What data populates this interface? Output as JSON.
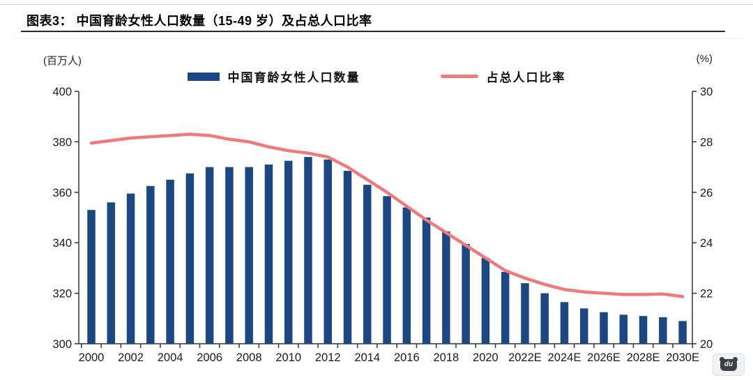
{
  "header": {
    "title": "图表3： 中国育龄女性人口数量（15-49 岁）及占总人口比率"
  },
  "legend": {
    "bar_label": "中国育龄女性人口数量",
    "line_label": "占总人口比率"
  },
  "watermark": {
    "label": "du"
  },
  "chart_data": {
    "type": "combo_bar_line",
    "title": "中国育龄女性人口数量（15-49 岁）及占总人口比率",
    "categories": [
      "2000",
      "2001",
      "2002",
      "2003",
      "2004",
      "2005",
      "2006",
      "2007",
      "2008",
      "2009",
      "2010",
      "2011",
      "2012",
      "2013",
      "2014",
      "2015",
      "2016",
      "2017",
      "2018",
      "2019",
      "2020",
      "2021",
      "2022E",
      "2023E",
      "2024E",
      "2025E",
      "2026E",
      "2027E",
      "2028E",
      "2029E",
      "2030E"
    ],
    "x_tick_labels": [
      "2000",
      "2002",
      "2004",
      "2006",
      "2008",
      "2010",
      "2012",
      "2014",
      "2016",
      "2018",
      "2020",
      "2022E",
      "2024E",
      "2026E",
      "2028E",
      "2030E"
    ],
    "series": [
      {
        "name": "中国育龄女性人口数量",
        "type": "bar",
        "axis": "left",
        "color": "#1b4885",
        "values": [
          353,
          356,
          359.5,
          362.5,
          365,
          367.5,
          370,
          370,
          370,
          371,
          372.5,
          374,
          373,
          368.5,
          363,
          358.5,
          354,
          350,
          344.5,
          339.5,
          334,
          328.5,
          324,
          320,
          316.5,
          314,
          312.5,
          311.5,
          311,
          310.5,
          309
        ]
      },
      {
        "name": "占总人口比率",
        "type": "line",
        "axis": "right",
        "color": "#f0797b",
        "values": [
          27.95,
          28.05,
          28.15,
          28.2,
          28.25,
          28.3,
          28.25,
          28.1,
          28.0,
          27.8,
          27.65,
          27.55,
          27.4,
          27.0,
          26.5,
          26.0,
          25.45,
          24.9,
          24.4,
          23.9,
          23.4,
          22.9,
          22.6,
          22.35,
          22.15,
          22.05,
          22.0,
          21.95,
          21.95,
          21.97,
          21.87
        ]
      }
    ],
    "left_axis": {
      "label": "(百万人)",
      "min": 300,
      "max": 400,
      "ticks": [
        400,
        380,
        360,
        340,
        320,
        300
      ]
    },
    "right_axis": {
      "label": "(%)",
      "min": 20,
      "max": 30,
      "ticks": [
        30,
        28,
        26,
        24,
        22,
        20
      ]
    },
    "grid": false,
    "legend_position": "top"
  }
}
